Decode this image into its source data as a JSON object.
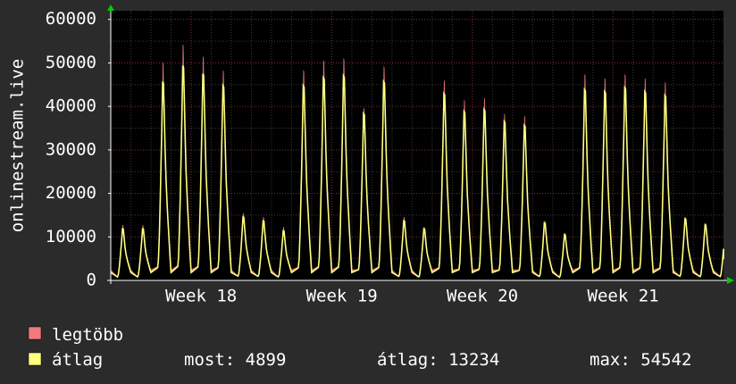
{
  "chart_data": {
    "type": "area",
    "ylabel": "onlinestream.live",
    "ylim": [
      0,
      62000
    ],
    "yticks": [
      0,
      10000,
      20000,
      30000,
      40000,
      50000,
      60000
    ],
    "ytick_labels": [
      "0",
      "10000",
      "20000",
      "30000",
      "40000",
      "50000",
      "60000"
    ],
    "xticks": [
      {
        "label": "Week 18",
        "day": 4
      },
      {
        "label": "Week 19",
        "day": 11
      },
      {
        "label": "Week 20",
        "day": 18
      },
      {
        "label": "Week 21",
        "day": 25
      }
    ],
    "x_range_days": [
      0,
      30.5
    ],
    "grid": true,
    "daily_peak_max": [
      14000,
      14000,
      55000,
      59500,
      56500,
      53000,
      17000,
      16000,
      13500,
      53000,
      55500,
      56000,
      43500,
      54000,
      16000,
      13500,
      50500,
      45500,
      46000,
      42000,
      41500,
      15000,
      12000,
      52000,
      51000,
      52000,
      51000,
      50000,
      16000,
      14500,
      14500
    ],
    "daily_peak_avg": [
      13000,
      13000,
      50000,
      54000,
      52000,
      49000,
      16000,
      15000,
      12500,
      49000,
      51000,
      51500,
      42000,
      50000,
      15000,
      13000,
      47000,
      42500,
      43000,
      40000,
      39000,
      14500,
      11500,
      48000,
      47500,
      48500,
      47500,
      46500,
      15500,
      14000,
      14000
    ],
    "series": [
      {
        "name": "legtöbb",
        "color": "#f07a80"
      },
      {
        "name": "átlag",
        "color": "#ffff80"
      }
    ],
    "legend_placement": "bottom-left"
  },
  "legend": {
    "max_label": "legtöbb",
    "avg_label": "átlag",
    "stats": {
      "now": "most: 4899",
      "average": "átlag: 13234",
      "max": "max: 54542"
    }
  },
  "colors": {
    "background": "#2b2b2b",
    "plot_background": "#000000",
    "grid_minor": "#3a3a3a",
    "grid_major": "#8a2c2c",
    "axis": "#ffffff",
    "arrow": "#00cc00",
    "max_fill": "#f07a80",
    "avg_line": "#ffff80"
  }
}
